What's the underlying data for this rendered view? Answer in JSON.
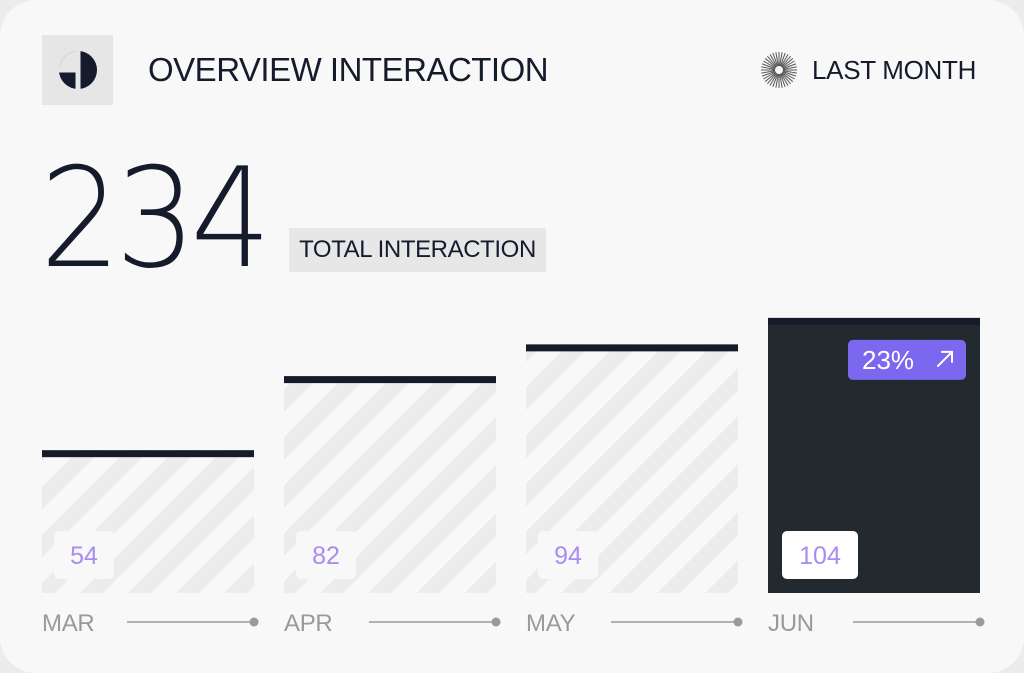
{
  "header": {
    "title": "OVERVIEW INTERACTION",
    "period_label": "LAST MONTH"
  },
  "summary": {
    "total": "234",
    "total_label": "TOTAL INTERACTION"
  },
  "chart_data": {
    "type": "bar",
    "categories": [
      "MAR",
      "APR",
      "MAY",
      "JUN"
    ],
    "values": [
      54,
      82,
      94,
      104
    ],
    "highlight_index": 3,
    "highlight_badge": "23%",
    "highlight_badge_icon": "arrow-up-right-icon"
  },
  "colors": {
    "dark": "#151b2b",
    "highlight_bar": "#22292f",
    "accent": "#7b68ee",
    "value_text": "#a88cf0",
    "label": "#9a9a9a"
  },
  "icons": {
    "logo": "logo-icon",
    "period": "sunburst-icon"
  }
}
